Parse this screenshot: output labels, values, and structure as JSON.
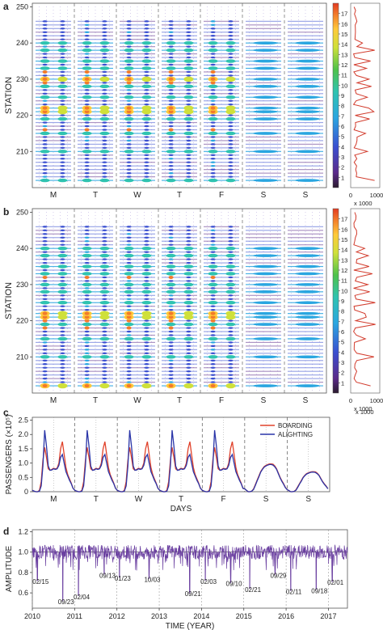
{
  "figure": {
    "panels": [
      {
        "letter": "a",
        "ylabel": "STATION",
        "yticks": [
          210,
          220,
          230,
          240,
          250
        ],
        "ylim": [
          200,
          251
        ],
        "day_labels": [
          "M",
          "T",
          "W",
          "T",
          "F",
          "S",
          "S"
        ],
        "colorbar": {
          "ticks": [
            1,
            2,
            3,
            4,
            5,
            6,
            7,
            8,
            9,
            10,
            11,
            12,
            13,
            14,
            15,
            16,
            17
          ],
          "scale_label": "x 1000"
        },
        "profile_axis": {
          "ticks": [
            "0",
            "1000"
          ]
        }
      },
      {
        "letter": "b",
        "ylabel": "STATION",
        "yticks": [
          210,
          220,
          230,
          240,
          250
        ],
        "ylim": [
          200,
          251
        ],
        "day_labels": [
          "M",
          "T",
          "W",
          "T",
          "F",
          "S",
          "S"
        ],
        "colorbar": {
          "ticks": [
            1,
            2,
            3,
            4,
            5,
            6,
            7,
            8,
            9,
            10,
            11,
            12,
            13,
            14,
            15,
            16,
            17
          ],
          "scale_label": "x 1000"
        },
        "profile_axis": {
          "ticks": [
            "0",
            "1000"
          ]
        }
      },
      {
        "letter": "c",
        "ylabel": "PASSENGERS (×10⁵)",
        "xlabel": "DAYS",
        "yticks": [
          "0",
          "0.5",
          "1.0",
          "1.5",
          "2.0",
          "2.5"
        ],
        "scale_label": "x 1000",
        "day_labels": [
          "M",
          "T",
          "W",
          "T",
          "F",
          "S",
          "S"
        ],
        "legend": [
          "BOARDING",
          "ALIGHTING"
        ]
      },
      {
        "letter": "d",
        "ylabel": "AMPLITUDE",
        "xlabel": "TIME (YEAR)",
        "yticks": [
          "0.6",
          "0.8",
          "1.0",
          "1.2"
        ],
        "xticks": [
          "2010",
          "2011",
          "2012",
          "2013",
          "2014",
          "2015",
          "2016",
          "2017"
        ],
        "annotations": [
          "02/15",
          "09/23",
          "02/04",
          "09/13",
          "01/23",
          "10/03",
          "09/21",
          "02/03",
          "09/10",
          "02/21",
          "09/29",
          "02/11",
          "09/18",
          "02/01"
        ]
      }
    ]
  },
  "chart_data": [
    {
      "type": "heatmap",
      "title": "",
      "ylabel": "STATION",
      "ylim": [
        200,
        251
      ],
      "x_categories": [
        "M",
        "T",
        "W",
        "T",
        "F",
        "S",
        "S"
      ],
      "colorbar_range": [
        0,
        17
      ],
      "colorbar_unit": "x 1000",
      "busy_stations": [
        202,
        210,
        215,
        219,
        221,
        222,
        225,
        228,
        230,
        233,
        235,
        238,
        240
      ],
      "weekday_peak_stations": [
        216,
        221,
        222,
        229,
        230,
        232
      ],
      "colors": {
        "high": "#e8442a",
        "mid": "#ffd23a",
        "low": "#3a50c8",
        "profile_line": "#d23b2c"
      }
    },
    {
      "type": "heatmap",
      "title": "",
      "ylabel": "STATION",
      "ylim": [
        200,
        251
      ],
      "x_categories": [
        "M",
        "T",
        "W",
        "T",
        "F",
        "S",
        "S"
      ],
      "colorbar_range": [
        0,
        17
      ],
      "colorbar_unit": "x 1000",
      "busy_stations": [
        202,
        210,
        215,
        219,
        221,
        222,
        225,
        228,
        230,
        233,
        235,
        238,
        240
      ],
      "weekday_peak_stations": [
        202,
        218,
        220,
        221,
        222,
        232
      ],
      "colors": {
        "high": "#e8442a",
        "mid": "#ffd23a",
        "low": "#3a50c8",
        "profile_line": "#d23b2c"
      }
    },
    {
      "type": "line",
      "xlabel": "DAYS",
      "ylabel": "PASSENGERS (×10⁵)",
      "ylim": [
        0,
        2.6
      ],
      "x_categories": [
        "M",
        "T",
        "W",
        "T",
        "F",
        "S",
        "S"
      ],
      "weekday_profile": {
        "hours": [
          0,
          1,
          2,
          3,
          4,
          5,
          6,
          7,
          8,
          9,
          10,
          11,
          12,
          13,
          14,
          15,
          16,
          17,
          18,
          19,
          20,
          21,
          22,
          23
        ],
        "boarding": [
          0.05,
          0.02,
          0.0,
          0.0,
          0.05,
          0.35,
          1.1,
          1.55,
          1.2,
          0.8,
          0.75,
          0.78,
          0.82,
          0.8,
          0.82,
          1.0,
          1.5,
          1.75,
          1.3,
          0.85,
          0.6,
          0.45,
          0.3,
          0.12
        ],
        "alighting": [
          0.05,
          0.02,
          0.0,
          0.0,
          0.02,
          0.2,
          0.9,
          2.15,
          1.6,
          0.9,
          0.75,
          0.76,
          0.8,
          0.78,
          0.8,
          0.92,
          1.2,
          1.3,
          1.0,
          0.7,
          0.55,
          0.4,
          0.28,
          0.12
        ]
      },
      "weekend_profile": {
        "hours": [
          0,
          1,
          2,
          3,
          4,
          5,
          6,
          7,
          8,
          9,
          10,
          11,
          12,
          13,
          14,
          15,
          16,
          17,
          18,
          19,
          20,
          21,
          22,
          23
        ],
        "boarding": [
          0.1,
          0.05,
          0.0,
          0.0,
          0.02,
          0.1,
          0.25,
          0.4,
          0.55,
          0.7,
          0.8,
          0.88,
          0.92,
          0.95,
          0.97,
          0.97,
          0.96,
          0.9,
          0.8,
          0.65,
          0.5,
          0.38,
          0.28,
          0.15
        ],
        "alighting": [
          0.1,
          0.05,
          0.0,
          0.0,
          0.02,
          0.08,
          0.22,
          0.38,
          0.52,
          0.68,
          0.78,
          0.86,
          0.9,
          0.93,
          0.95,
          0.95,
          0.93,
          0.87,
          0.78,
          0.63,
          0.48,
          0.36,
          0.26,
          0.14
        ]
      },
      "saturday_scale": 1.0,
      "sunday_scale": 0.72,
      "series": [
        {
          "name": "BOARDING",
          "color": "#e0432c"
        },
        {
          "name": "ALIGHTING",
          "color": "#2a35a8"
        }
      ]
    },
    {
      "type": "line",
      "xlabel": "TIME (YEAR)",
      "ylabel": "AMPLITUDE",
      "xlim": [
        2010.0,
        2017.45
      ],
      "ylim": [
        0.45,
        1.22
      ],
      "baseline": 1.0,
      "series_color": "#6a3fa0",
      "dips": [
        {
          "x": 2010.12,
          "y": 0.72,
          "label": "02/15"
        },
        {
          "x": 2010.72,
          "y": 0.52,
          "label": "09/23"
        },
        {
          "x": 2011.09,
          "y": 0.57,
          "label": "02/04"
        },
        {
          "x": 2011.7,
          "y": 0.78,
          "label": "09/13"
        },
        {
          "x": 2012.06,
          "y": 0.75,
          "label": "01/23"
        },
        {
          "x": 2012.76,
          "y": 0.74,
          "label": "10/03"
        },
        {
          "x": 2013.72,
          "y": 0.6,
          "label": "09/21"
        },
        {
          "x": 2014.09,
          "y": 0.72,
          "label": "02/03"
        },
        {
          "x": 2014.69,
          "y": 0.7,
          "label": "09/10"
        },
        {
          "x": 2015.14,
          "y": 0.64,
          "label": "02/21"
        },
        {
          "x": 2015.74,
          "y": 0.78,
          "label": "09/29"
        },
        {
          "x": 2016.11,
          "y": 0.62,
          "label": "02/11"
        },
        {
          "x": 2016.71,
          "y": 0.63,
          "label": "09/18"
        },
        {
          "x": 2017.09,
          "y": 0.71,
          "label": "02/01"
        }
      ]
    }
  ]
}
